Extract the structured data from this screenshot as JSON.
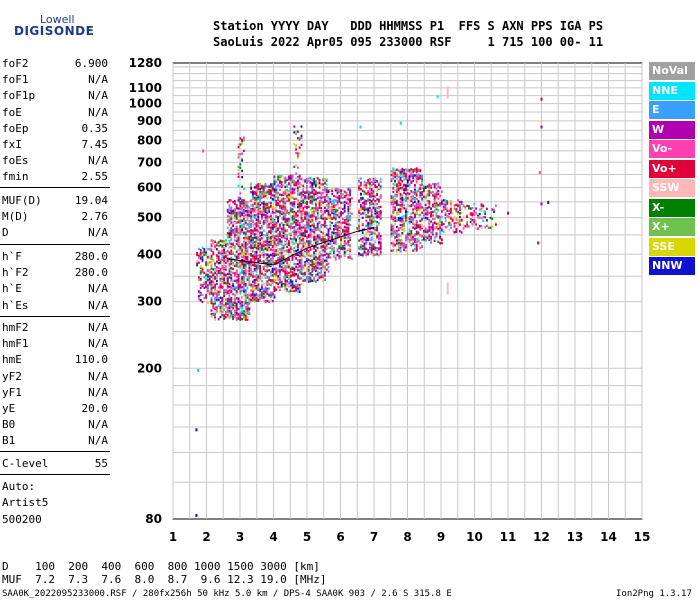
{
  "logo": {
    "line1": "Lowell",
    "line2": "DIGISONDE"
  },
  "header": {
    "labels": "Station YYYY DAY   DDD HHMMSS P1  FFS S AXN PPS IGA PS",
    "values": "SaoLuis 2022 Apr05 095 233000 RSF     1 715 100 00- 11"
  },
  "params_group1": [
    {
      "k": "foF2",
      "v": "6.900"
    },
    {
      "k": "foF1",
      "v": "N/A"
    },
    {
      "k": "foF1p",
      "v": "N/A"
    },
    {
      "k": "foE",
      "v": "N/A"
    },
    {
      "k": "foEp",
      "v": "0.35"
    },
    {
      "k": "fxI",
      "v": "7.45"
    },
    {
      "k": "foEs",
      "v": "N/A"
    },
    {
      "k": "fmin",
      "v": "2.55"
    }
  ],
  "params_group2": [
    {
      "k": "MUF(D)",
      "v": "19.04"
    },
    {
      "k": "M(D)",
      "v": "2.76"
    },
    {
      "k": "D",
      "v": "N/A"
    }
  ],
  "params_group3": [
    {
      "k": "h`F",
      "v": "280.0"
    },
    {
      "k": "h`F2",
      "v": "280.0"
    },
    {
      "k": "h`E",
      "v": "N/A"
    },
    {
      "k": "h`Es",
      "v": "N/A"
    }
  ],
  "params_group4": [
    {
      "k": "hmF2",
      "v": "N/A"
    },
    {
      "k": "hmF1",
      "v": "N/A"
    },
    {
      "k": "hmE",
      "v": "110.0"
    },
    {
      "k": "yF2",
      "v": "N/A"
    },
    {
      "k": "yF1",
      "v": "N/A"
    },
    {
      "k": "yE",
      "v": "20.0"
    },
    {
      "k": "B0",
      "v": "N/A"
    },
    {
      "k": "B1",
      "v": "N/A"
    }
  ],
  "clevel": {
    "k": "C-level",
    "v": "55"
  },
  "auto": {
    "l1": "Auto:",
    "l2": "Artist5",
    "l3": "500200"
  },
  "legend": [
    {
      "label": "NoVal",
      "color": "#a0a0a0"
    },
    {
      "label": "NNE",
      "color": "#00e5ff"
    },
    {
      "label": "E",
      "color": "#3aa0ff"
    },
    {
      "label": "W",
      "color": "#b000b0"
    },
    {
      "label": "Vo-",
      "color": "#ff40b0"
    },
    {
      "label": "Vo+",
      "color": "#e0003a"
    },
    {
      "label": "SSW",
      "color": "#ffb8b8"
    },
    {
      "label": "X-",
      "color": "#008000"
    },
    {
      "label": "X+",
      "color": "#70c050"
    },
    {
      "label": "SSE",
      "color": "#d8d800"
    },
    {
      "label": "NNW",
      "color": "#1010d0"
    }
  ],
  "muf_table": {
    "row1": "D    100  200  400  600  800 1000 1500 3000 [km]",
    "row2": "MUF  7.2  7.3  7.6  8.0  8.7  9.6 12.3 19.0 [MHz]"
  },
  "footer": {
    "left": "SAA0K_2022095233000.RSF / 280fx256h 50 kHz 5.0 km / DPS-4 SAA0K 903 / 2.6 S 315.8 E",
    "right": "Ion2Png 1.3.17"
  },
  "chart_data": {
    "type": "scatter",
    "x_range": [
      1,
      15
    ],
    "y_range": [
      80,
      1280
    ],
    "x_ticks": [
      1,
      2,
      3,
      4,
      5,
      6,
      7,
      8,
      9,
      10,
      11,
      12,
      13,
      14,
      15
    ],
    "y_ticks": [
      80,
      200,
      300,
      400,
      500,
      600,
      700,
      800,
      900,
      1000,
      1100,
      1280
    ],
    "y_scale": "log",
    "grid": true,
    "clusters": [
      {
        "x": [
          1.7,
          2.1
        ],
        "y": [
          300,
          420
        ],
        "density": 0.55
      },
      {
        "x": [
          2.1,
          2.6
        ],
        "y": [
          270,
          440
        ],
        "density": 0.75
      },
      {
        "x": [
          2.6,
          3.3
        ],
        "y": [
          270,
          560
        ],
        "density": 0.9
      },
      {
        "x": [
          3.3,
          4.0
        ],
        "y": [
          300,
          620
        ],
        "density": 0.9
      },
      {
        "x": [
          4.0,
          4.8
        ],
        "y": [
          320,
          650
        ],
        "density": 0.85
      },
      {
        "x": [
          4.8,
          5.6
        ],
        "y": [
          340,
          640
        ],
        "density": 0.8
      },
      {
        "x": [
          5.6,
          6.3
        ],
        "y": [
          390,
          600
        ],
        "density": 0.7
      },
      {
        "x": [
          6.5,
          7.2
        ],
        "y": [
          400,
          640
        ],
        "density": 0.7
      },
      {
        "x": [
          7.5,
          8.4
        ],
        "y": [
          410,
          680
        ],
        "density": 0.75
      },
      {
        "x": [
          8.4,
          9.0
        ],
        "y": [
          430,
          620
        ],
        "density": 0.6
      },
      {
        "x": [
          9.0,
          9.6
        ],
        "y": [
          460,
          560
        ],
        "density": 0.5
      },
      {
        "x": [
          9.6,
          10.6
        ],
        "y": [
          470,
          550
        ],
        "density": 0.3
      },
      {
        "x": [
          2.9,
          3.1
        ],
        "y": [
          560,
          820
        ],
        "density": 0.25
      },
      {
        "x": [
          4.6,
          4.8
        ],
        "y": [
          600,
          880
        ],
        "density": 0.25
      }
    ],
    "trace": {
      "x": [
        2.6,
        3.0,
        3.5,
        4.0,
        4.5,
        5.0,
        5.5,
        6.0,
        6.5,
        7.0
      ],
      "y": [
        390,
        385,
        380,
        375,
        395,
        415,
        430,
        445,
        460,
        470
      ]
    },
    "isolated_points": [
      {
        "x": 1.7,
        "y": 82,
        "c": "#1010d0"
      },
      {
        "x": 1.75,
        "y": 198,
        "c": "#00e5ff"
      },
      {
        "x": 1.7,
        "y": 138,
        "c": "#1010d0"
      },
      {
        "x": 1.9,
        "y": 752,
        "c": "#ff40b0"
      },
      {
        "x": 9.2,
        "y": 1070,
        "c": "#ffb8b8"
      },
      {
        "x": 9.2,
        "y": 325,
        "c": "#ffb8b8"
      },
      {
        "x": 8.9,
        "y": 1045,
        "c": "#00e5ff"
      },
      {
        "x": 12.0,
        "y": 1030,
        "c": "#e0003a"
      },
      {
        "x": 12.0,
        "y": 870,
        "c": "#b000b0"
      },
      {
        "x": 11.95,
        "y": 660,
        "c": "#ff40b0"
      },
      {
        "x": 12.0,
        "y": 545,
        "c": "#b000b0"
      },
      {
        "x": 12.2,
        "y": 550,
        "c": "#1010d0"
      },
      {
        "x": 11.9,
        "y": 430,
        "c": "#e0003a"
      },
      {
        "x": 6.6,
        "y": 870,
        "c": "#00e5ff"
      },
      {
        "x": 7.8,
        "y": 890,
        "c": "#00e5ff"
      },
      {
        "x": 11.0,
        "y": 515,
        "c": "#e0003a"
      },
      {
        "x": 10.3,
        "y": 520,
        "c": "#00e5ff"
      }
    ]
  }
}
